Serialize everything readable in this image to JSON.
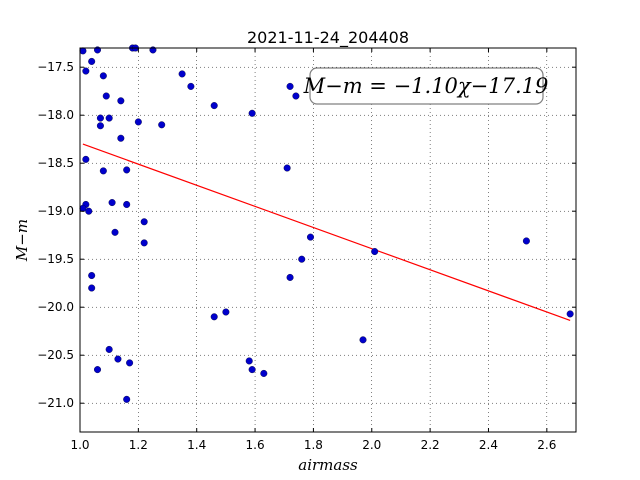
{
  "chart_data": {
    "type": "scatter",
    "title": "2021-11-24_204408",
    "xlabel": "airmass",
    "ylabel": "M−m",
    "xlim": [
      1.0,
      2.7
    ],
    "ylim": [
      -21.3,
      -17.3
    ],
    "xticks": [
      1.0,
      1.2,
      1.4,
      1.6,
      1.8,
      2.0,
      2.2,
      2.4,
      2.6
    ],
    "xtick_labels": [
      "1.0",
      "1.2",
      "1.4",
      "1.6",
      "1.8",
      "2.0",
      "2.2",
      "2.4",
      "2.6"
    ],
    "yticks": [
      -17.5,
      -18.0,
      -18.5,
      -19.0,
      -19.5,
      -20.0,
      -20.5,
      -21.0
    ],
    "ytick_labels": [
      "−17.5",
      "−18.0",
      "−18.5",
      "−19.0",
      "−19.5",
      "−20.0",
      "−20.5",
      "−21.0"
    ],
    "grid": true,
    "annotation": "M−m = −1.10χ−17.19",
    "fit": {
      "slope": -1.1,
      "intercept": -17.19,
      "color": "#ff0000"
    },
    "marker_color": "#0000cc",
    "points": [
      {
        "x": 1.01,
        "y": -17.33
      },
      {
        "x": 1.06,
        "y": -17.32
      },
      {
        "x": 1.18,
        "y": -17.3
      },
      {
        "x": 1.19,
        "y": -17.3
      },
      {
        "x": 1.25,
        "y": -17.32
      },
      {
        "x": 1.04,
        "y": -17.44
      },
      {
        "x": 1.02,
        "y": -17.54
      },
      {
        "x": 1.08,
        "y": -17.59
      },
      {
        "x": 1.35,
        "y": -17.57
      },
      {
        "x": 1.38,
        "y": -17.7
      },
      {
        "x": 1.72,
        "y": -17.7
      },
      {
        "x": 1.74,
        "y": -17.8
      },
      {
        "x": 1.09,
        "y": -17.8
      },
      {
        "x": 1.14,
        "y": -17.85
      },
      {
        "x": 1.46,
        "y": -17.9
      },
      {
        "x": 1.59,
        "y": -17.98
      },
      {
        "x": 1.07,
        "y": -18.03
      },
      {
        "x": 1.1,
        "y": -18.03
      },
      {
        "x": 1.2,
        "y": -18.07
      },
      {
        "x": 1.28,
        "y": -18.1
      },
      {
        "x": 1.07,
        "y": -18.11
      },
      {
        "x": 1.14,
        "y": -18.24
      },
      {
        "x": 1.02,
        "y": -18.46
      },
      {
        "x": 1.71,
        "y": -18.55
      },
      {
        "x": 1.08,
        "y": -18.58
      },
      {
        "x": 1.16,
        "y": -18.57
      },
      {
        "x": 1.02,
        "y": -18.93
      },
      {
        "x": 1.11,
        "y": -18.91
      },
      {
        "x": 1.16,
        "y": -18.93
      },
      {
        "x": 1.01,
        "y": -18.97
      },
      {
        "x": 1.03,
        "y": -19.0
      },
      {
        "x": 1.22,
        "y": -19.11
      },
      {
        "x": 1.12,
        "y": -19.22
      },
      {
        "x": 1.79,
        "y": -19.27
      },
      {
        "x": 1.22,
        "y": -19.33
      },
      {
        "x": 2.53,
        "y": -19.31
      },
      {
        "x": 2.01,
        "y": -19.42
      },
      {
        "x": 1.76,
        "y": -19.5
      },
      {
        "x": 1.04,
        "y": -19.67
      },
      {
        "x": 1.72,
        "y": -19.69
      },
      {
        "x": 1.04,
        "y": -19.8
      },
      {
        "x": 2.68,
        "y": -20.07
      },
      {
        "x": 1.5,
        "y": -20.05
      },
      {
        "x": 1.46,
        "y": -20.1
      },
      {
        "x": 1.97,
        "y": -20.34
      },
      {
        "x": 1.1,
        "y": -20.44
      },
      {
        "x": 1.13,
        "y": -20.54
      },
      {
        "x": 1.58,
        "y": -20.56
      },
      {
        "x": 1.17,
        "y": -20.58
      },
      {
        "x": 1.06,
        "y": -20.65
      },
      {
        "x": 1.59,
        "y": -20.65
      },
      {
        "x": 1.63,
        "y": -20.69
      },
      {
        "x": 1.16,
        "y": -20.96
      }
    ]
  }
}
